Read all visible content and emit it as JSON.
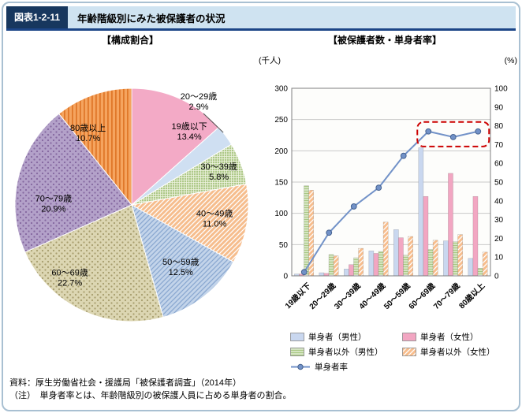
{
  "header": {
    "figure_label": "図表1-2-11",
    "title": "年齢階級別にみた被保護者の状況"
  },
  "sections": {
    "pie_title": "【構成割合】",
    "combo_title": "【被保護者数・単身者率】"
  },
  "footer": {
    "source": "資料：厚生労働省社会・援護局「被保護者調査」（2014年）",
    "note": "（注）　単身者率とは、年齢階級別の被保護人員に占める単身者の割合。"
  },
  "chart_data": [
    {
      "type": "pie",
      "title": "構成割合",
      "unit": "%",
      "categories": [
        "19歳以下",
        "20～29歳",
        "30～39歳",
        "40～49歳",
        "50～59歳",
        "60～69歳",
        "70～79歳",
        "80歳以上"
      ],
      "values": [
        13.4,
        2.9,
        5.8,
        11.0,
        12.5,
        22.7,
        20.9,
        10.7
      ],
      "colors": [
        "#f3aac6",
        "#cfdff2",
        "#aec989",
        "#f6bd8d",
        "#c3d4ea",
        "#dcd6b2",
        "#b3a1c9",
        "#f5a45f"
      ],
      "patterns": [
        "solid",
        "solid",
        "lattice:#eef3e0",
        "diag:#ffffff",
        "diag:#8aa8d0",
        "dots:#a79d6d",
        "dots:#84679f",
        "vstripes:#e0782a"
      ]
    },
    {
      "type": "bar+line",
      "title": "被保護者数・単身者率",
      "categories": [
        "19歳以下",
        "20～29歳",
        "30～39歳",
        "40～49歳",
        "50～59歳",
        "60～69歳",
        "70～79歳",
        "80歳以上"
      ],
      "left_axis": {
        "unit": "(千人)",
        "min": 0,
        "max": 300,
        "step": 50
      },
      "right_axis": {
        "unit": "(%)",
        "min": 0,
        "max": 100,
        "step": 10
      },
      "series": [
        {
          "name": "単身者（男性）",
          "kind": "bar",
          "axis": "left",
          "color": "#c9d7ef",
          "pattern": "solid",
          "values": [
            3,
            5,
            11,
            40,
            74,
            205,
            56,
            28
          ]
        },
        {
          "name": "単身者（女性）",
          "kind": "bar",
          "axis": "left",
          "color": "#f2a6c2",
          "pattern": "solid",
          "values": [
            3,
            4,
            18,
            36,
            61,
            127,
            164,
            127
          ]
        },
        {
          "name": "単身者以外（男性）",
          "kind": "bar",
          "axis": "left",
          "color": "#a9c983",
          "pattern": "hlines:#ffffff",
          "values": [
            144,
            34,
            29,
            39,
            33,
            42,
            55,
            12
          ]
        },
        {
          "name": "単身者以外（女性）",
          "kind": "bar",
          "axis": "left",
          "color": "#f8bd8c",
          "pattern": "diag:#ffffff",
          "values": [
            137,
            32,
            44,
            86,
            63,
            57,
            66,
            38
          ]
        },
        {
          "name": "単身者率",
          "kind": "line",
          "axis": "right",
          "color": "#7292c8",
          "pattern": "solid",
          "values": [
            2,
            23,
            37,
            47,
            64,
            77,
            74,
            77
          ]
        }
      ],
      "annotation": {
        "shape": "dashed-box",
        "color": "#cc0000",
        "series": "単身者率",
        "category_from": "60～69歳",
        "category_to": "80歳以上"
      }
    }
  ]
}
